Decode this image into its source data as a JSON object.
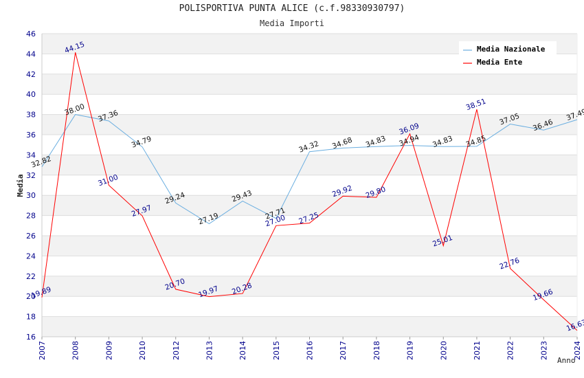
{
  "chart_data": {
    "type": "line",
    "title": "POLISPORTIVA PUNTA ALICE (c.f.98330930797)",
    "subtitle": "Media Importi",
    "xlabel": "Anno",
    "ylabel": "Media",
    "ylim": [
      16,
      46
    ],
    "yticks": [
      16,
      18,
      20,
      22,
      24,
      26,
      28,
      30,
      32,
      34,
      36,
      38,
      40,
      42,
      44,
      46
    ],
    "categories": [
      "2007",
      "2008",
      "2009",
      "2010",
      "2012",
      "2013",
      "2014",
      "2015",
      "2016",
      "2017",
      "2018",
      "2019",
      "2020",
      "2021",
      "2022",
      "2023",
      "2024"
    ],
    "series": [
      {
        "name": "Media Nazionale",
        "color": "#6aaee0",
        "values": [
          32.82,
          38.0,
          37.36,
          34.79,
          29.24,
          27.19,
          29.43,
          27.71,
          34.32,
          34.68,
          34.83,
          34.94,
          34.83,
          34.85,
          37.05,
          36.46,
          37.49
        ],
        "labels": [
          "32.82",
          "38.00",
          "37.36",
          "34.79",
          "29.24",
          "27.19",
          "29.43",
          "27.71",
          "34.32",
          "34.68",
          "34.83",
          "34.94",
          "34.83",
          "34.85",
          "37.05",
          "36.46",
          "37.49"
        ]
      },
      {
        "name": "Media Ente",
        "color": "#ff0000",
        "values": [
          19.89,
          44.15,
          31.0,
          27.97,
          20.7,
          19.97,
          20.28,
          27.0,
          27.25,
          29.92,
          29.8,
          36.09,
          25.01,
          38.51,
          22.76,
          19.66,
          16.63
        ],
        "labels": [
          "19.89",
          "44.15",
          "31.00",
          "27.97",
          "20.70",
          "19.97",
          "20.28",
          "27.00",
          "27.25",
          "29.92",
          "29.80",
          "36.09",
          "25.01",
          "38.51",
          "22.76",
          "19.66",
          "16.63"
        ]
      }
    ],
    "legend_position": "top-right",
    "grid": true
  }
}
